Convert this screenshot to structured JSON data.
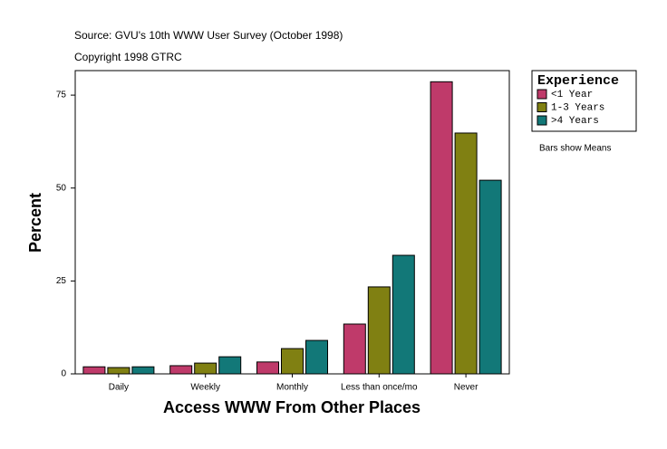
{
  "chart_data": {
    "type": "bar",
    "subtitle": "Source: GVU's 10th WWW User Survey (October 1998)",
    "copyright": "Copyright 1998 GTRC",
    "x_label": "Access WWW From Other Places",
    "y_label": "Percent",
    "note": "Bars show Means",
    "legend_title": "Experience",
    "categories": [
      "Daily",
      "Weekly",
      "Monthly",
      "Less than once/mo",
      "Never"
    ],
    "series": [
      {
        "name": "<1 Year",
        "color": "#bf3a6a",
        "values": [
          1.9,
          2.2,
          3.2,
          13.4,
          78.6
        ]
      },
      {
        "name": "1-3 Years",
        "color": "#808012",
        "values": [
          1.7,
          2.9,
          6.8,
          23.4,
          64.8
        ]
      },
      {
        "name": ">4 Years",
        "color": "#127878",
        "values": [
          1.9,
          4.6,
          9.0,
          31.9,
          52.1
        ]
      }
    ],
    "ylim": [
      0,
      81.6
    ],
    "yticks": [
      0,
      25,
      50,
      75
    ]
  }
}
